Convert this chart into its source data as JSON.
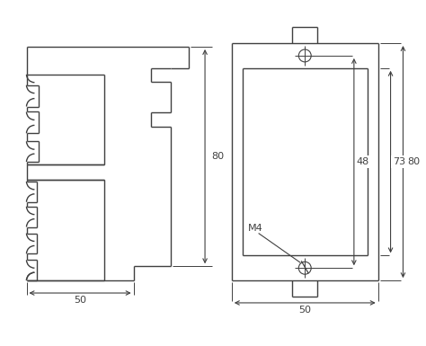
{
  "background_color": "#ffffff",
  "line_color": "#404040",
  "fig_width": 4.74,
  "fig_height": 3.85,
  "dpi": 100,
  "labels": {
    "dim_50_left": "50",
    "dim_80_left": "80",
    "dim_50_right": "50",
    "dim_80_right": "80",
    "dim_73": "73",
    "dim_48": "48",
    "m4": "M4"
  }
}
